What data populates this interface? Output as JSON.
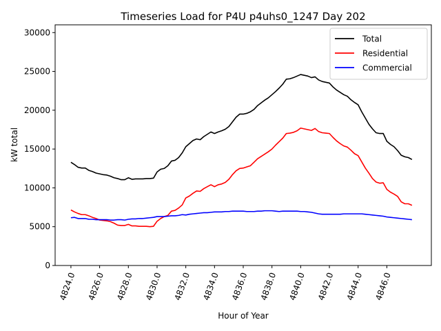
{
  "chart_data": {
    "type": "line",
    "title": "Timeseries Load for P4U p4uhs0_1247  Day 202",
    "xlabel": "Hour of Year",
    "ylabel": "kW total",
    "xlim": [
      4822.9,
      4849.1
    ],
    "ylim": [
      0,
      31000
    ],
    "xticks": [
      4824,
      4826,
      4828,
      4830,
      4832,
      4834,
      4836,
      4838,
      4840,
      4842,
      4844,
      4846
    ],
    "xtick_labels": [
      "4824.0",
      "4826.0",
      "4828.0",
      "4830.0",
      "4832.0",
      "4834.0",
      "4836.0",
      "4838.0",
      "4840.0",
      "4842.0",
      "4844.0",
      "4846.0"
    ],
    "yticks": [
      0,
      5000,
      10000,
      15000,
      20000,
      25000,
      30000
    ],
    "ytick_labels": [
      "0",
      "5000",
      "10000",
      "15000",
      "20000",
      "25000",
      "30000"
    ],
    "legend_position": "top-right",
    "x": [
      4824.0,
      4824.25,
      4824.5,
      4824.75,
      4825.0,
      4825.25,
      4825.5,
      4825.75,
      4826.0,
      4826.25,
      4826.5,
      4826.75,
      4827.0,
      4827.25,
      4827.5,
      4827.75,
      4828.0,
      4828.25,
      4828.5,
      4828.75,
      4829.0,
      4829.25,
      4829.5,
      4829.75,
      4830.0,
      4830.25,
      4830.5,
      4830.75,
      4831.0,
      4831.25,
      4831.5,
      4831.75,
      4832.0,
      4832.25,
      4832.5,
      4832.75,
      4833.0,
      4833.25,
      4833.5,
      4833.75,
      4834.0,
      4834.25,
      4834.5,
      4834.75,
      4835.0,
      4835.25,
      4835.5,
      4835.75,
      4836.0,
      4836.25,
      4836.5,
      4836.75,
      4837.0,
      4837.25,
      4837.5,
      4837.75,
      4838.0,
      4838.25,
      4838.5,
      4838.75,
      4839.0,
      4839.25,
      4839.5,
      4839.75,
      4840.0,
      4840.25,
      4840.5,
      4840.75,
      4841.0,
      4841.25,
      4841.5,
      4841.75,
      4842.0,
      4842.25,
      4842.5,
      4842.75,
      4843.0,
      4843.25,
      4843.5,
      4843.75,
      4844.0,
      4844.25,
      4844.5,
      4844.75,
      4845.0,
      4845.25,
      4845.5,
      4845.75,
      4846.0,
      4846.25,
      4846.5,
      4846.75,
      4847.0,
      4847.25,
      4847.5,
      4847.75
    ],
    "series": [
      {
        "name": "Total",
        "color": "#000000",
        "values": [
          13300,
          13000,
          12650,
          12550,
          12550,
          12250,
          12100,
          11900,
          11800,
          11700,
          11650,
          11500,
          11300,
          11200,
          11050,
          11050,
          11300,
          11100,
          11150,
          11150,
          11150,
          11200,
          11200,
          11250,
          12050,
          12400,
          12500,
          12850,
          13450,
          13550,
          13900,
          14500,
          15300,
          15700,
          16100,
          16300,
          16200,
          16600,
          16900,
          17200,
          17000,
          17200,
          17350,
          17550,
          17900,
          18500,
          19100,
          19500,
          19500,
          19600,
          19800,
          20100,
          20600,
          20950,
          21300,
          21600,
          22000,
          22400,
          22850,
          23350,
          24000,
          24050,
          24200,
          24400,
          24600,
          24500,
          24400,
          24200,
          24300,
          23900,
          23700,
          23600,
          23500,
          23000,
          22600,
          22300,
          22000,
          21800,
          21350,
          21000,
          20700,
          19800,
          19000,
          18200,
          17600,
          17100,
          17000,
          17000,
          16000,
          15600,
          15300,
          14800,
          14200,
          14000,
          13900,
          13650
        ]
      },
      {
        "name": "Residential",
        "color": "#ff0000",
        "values": [
          7150,
          6900,
          6700,
          6550,
          6550,
          6400,
          6200,
          6050,
          5850,
          5800,
          5750,
          5650,
          5450,
          5200,
          5150,
          5150,
          5300,
          5100,
          5100,
          5050,
          5050,
          5050,
          5000,
          5050,
          5700,
          6050,
          6300,
          6450,
          7000,
          7100,
          7400,
          7800,
          8700,
          8950,
          9300,
          9600,
          9550,
          9900,
          10150,
          10400,
          10150,
          10400,
          10500,
          10700,
          11100,
          11700,
          12200,
          12500,
          12550,
          12700,
          12850,
          13300,
          13750,
          14050,
          14350,
          14650,
          15000,
          15500,
          15950,
          16400,
          17000,
          17050,
          17150,
          17350,
          17700,
          17600,
          17500,
          17400,
          17650,
          17250,
          17100,
          17050,
          17000,
          16500,
          16050,
          15700,
          15400,
          15250,
          14850,
          14400,
          14150,
          13350,
          12550,
          11900,
          11200,
          10750,
          10600,
          10650,
          9800,
          9450,
          9200,
          8900,
          8200,
          7950,
          7950,
          7750
        ]
      },
      {
        "name": "Commercial",
        "color": "#0000ff",
        "values": [
          6150,
          6200,
          6050,
          6050,
          6050,
          5950,
          5950,
          5900,
          5900,
          5900,
          5900,
          5850,
          5850,
          5900,
          5900,
          5850,
          5950,
          6000,
          6000,
          6050,
          6050,
          6100,
          6150,
          6200,
          6300,
          6300,
          6300,
          6350,
          6400,
          6400,
          6450,
          6550,
          6500,
          6600,
          6650,
          6700,
          6750,
          6800,
          6800,
          6850,
          6900,
          6900,
          6900,
          6950,
          6950,
          7000,
          7000,
          7000,
          7000,
          6950,
          6950,
          6950,
          7000,
          7000,
          7050,
          7050,
          7050,
          7000,
          6950,
          7000,
          7000,
          7000,
          7000,
          7000,
          6950,
          6950,
          6900,
          6850,
          6750,
          6650,
          6600,
          6600,
          6600,
          6600,
          6600,
          6600,
          6650,
          6650,
          6650,
          6650,
          6650,
          6650,
          6600,
          6550,
          6500,
          6450,
          6400,
          6350,
          6250,
          6200,
          6150,
          6100,
          6050,
          6000,
          5950,
          5900
        ]
      }
    ]
  }
}
